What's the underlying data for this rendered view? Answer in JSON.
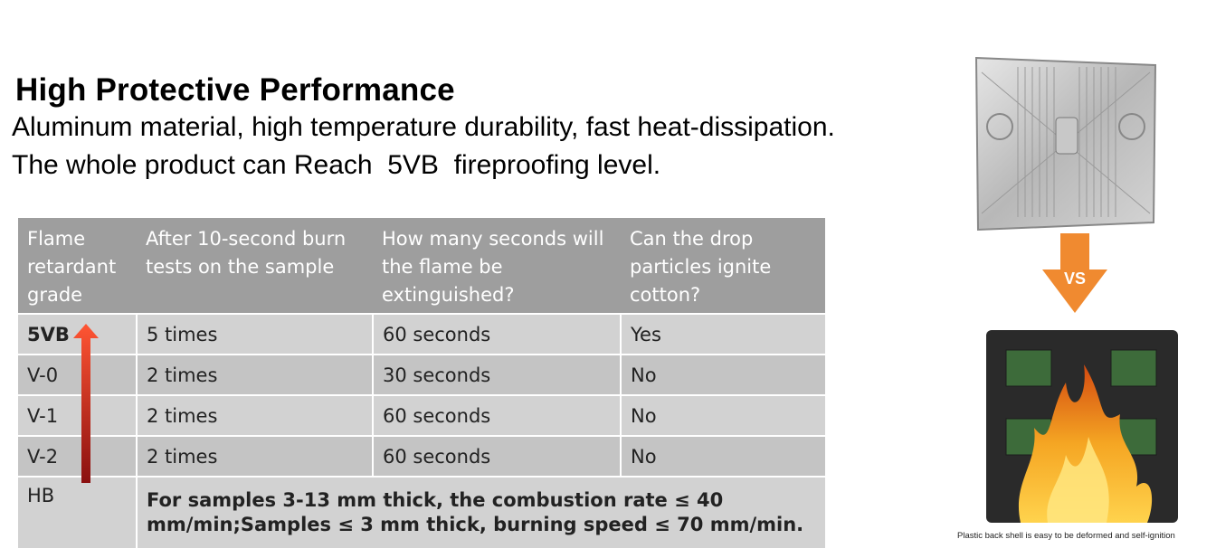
{
  "heading": {
    "title": "High Protective Performance",
    "line1": "Aluminum material, high temperature durability, fast heat-dissipation.",
    "line2": "The whole product can Reach  5VB  fireproofing level."
  },
  "table": {
    "headers": [
      "Flame retardant grade",
      "After 10-second burn tests on the sample",
      "How many seconds will the flame be extinguished?",
      "Can the drop particles ignite cotton?"
    ],
    "rows": [
      {
        "grade": "5VB",
        "burn_tests": "5 times",
        "extinguish": "60 seconds",
        "ignite": "Yes"
      },
      {
        "grade": "V-0",
        "burn_tests": "2 times",
        "extinguish": "30 seconds",
        "ignite": "No"
      },
      {
        "grade": "V-1",
        "burn_tests": "2 times",
        "extinguish": "60 seconds",
        "ignite": "No"
      },
      {
        "grade": "V-2",
        "burn_tests": "2 times",
        "extinguish": "60 seconds",
        "ignite": "No"
      }
    ],
    "hb_row": {
      "grade": "HB",
      "note": "For samples 3-13 mm thick, the combustion rate ≤ 40 mm/min;Samples ≤ 3 mm thick, burning speed ≤ 70 mm/min."
    }
  },
  "comparison": {
    "vs_label": "VS",
    "caption": "Plastic back shell is easy to be deformed and self-ignition",
    "arrow_color": "#f08a30",
    "flame_color": "#f5a623"
  }
}
